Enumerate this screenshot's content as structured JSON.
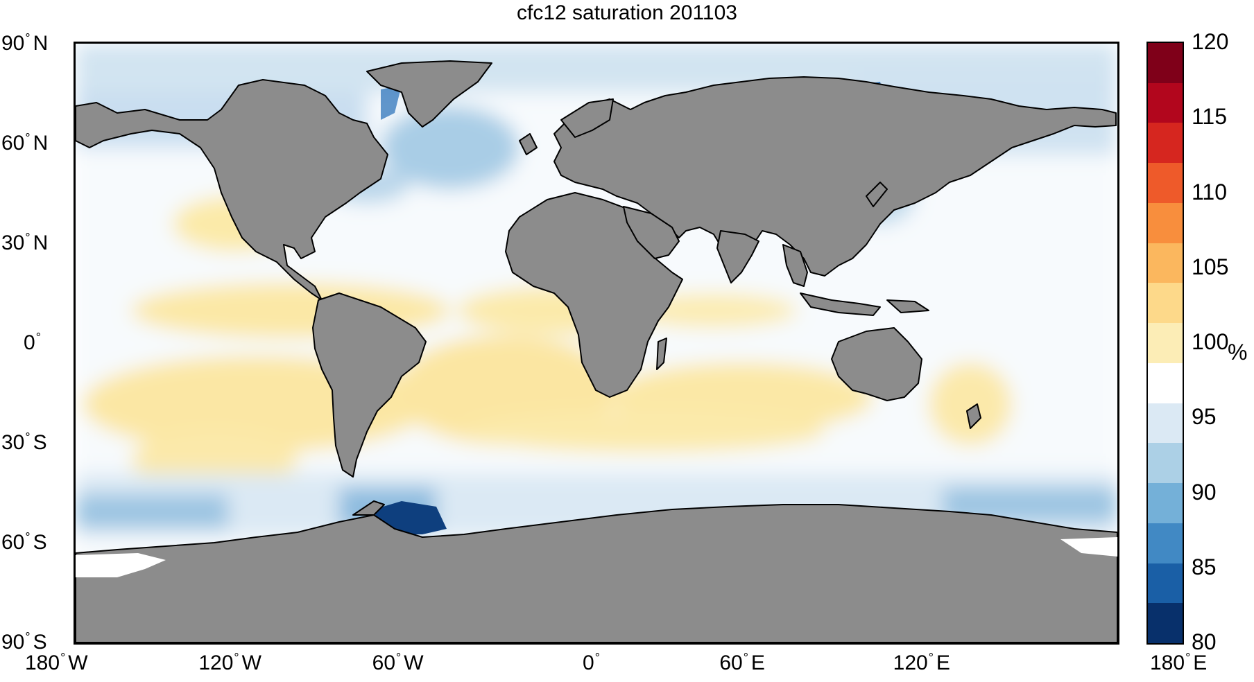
{
  "title": "cfc12 saturation 201103",
  "colorbar": {
    "ticks": [
      "120",
      "115",
      "110",
      "105",
      "100",
      "95",
      "90",
      "85",
      "80"
    ],
    "unit": "%",
    "min": 80,
    "max": 120,
    "colors_high_to_low": [
      "#7f0019",
      "#b2061d",
      "#d6261f",
      "#ee5a2a",
      "#f88e3d",
      "#fbb75e",
      "#fdd98a",
      "#fcedb6",
      "#ffffff",
      "#dbe9f4",
      "#acd0e6",
      "#74b0d8",
      "#4189c4",
      "#1a5fa6",
      "#08306b"
    ]
  },
  "axes": {
    "y_ticks": [
      {
        "num": "90",
        "hemi": "N"
      },
      {
        "num": "60",
        "hemi": "N"
      },
      {
        "num": "30",
        "hemi": "N"
      },
      {
        "num": "0",
        "hemi": ""
      },
      {
        "num": "30",
        "hemi": "S"
      },
      {
        "num": "60",
        "hemi": "S"
      },
      {
        "num": "90",
        "hemi": "S"
      }
    ],
    "x_ticks": [
      {
        "num": "180",
        "hemi": "W"
      },
      {
        "num": "120",
        "hemi": "W"
      },
      {
        "num": "60",
        "hemi": "W"
      },
      {
        "num": "0",
        "hemi": ""
      },
      {
        "num": "60",
        "hemi": "E"
      },
      {
        "num": "120",
        "hemi": "E"
      },
      {
        "num": "180",
        "hemi": "E"
      }
    ]
  },
  "colors": {
    "land": "#8c8c8c",
    "coastline": "#000000",
    "ocean_base": "#ffffff"
  }
}
